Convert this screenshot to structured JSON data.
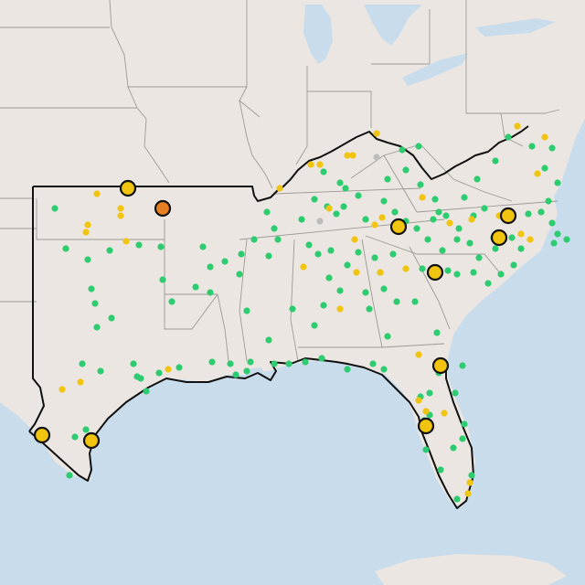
{
  "map": {
    "colors": {
      "land": "#ebe6e1",
      "water": "#c9dcec",
      "state_border": "#9c9a96",
      "region_outline": "#111111"
    },
    "marker_colors": {
      "green": "#2ecc71",
      "yellow": "#f1c40f",
      "gray": "#bdbdbd",
      "orange": "#e67e22",
      "outline": "#111111"
    }
  }
}
